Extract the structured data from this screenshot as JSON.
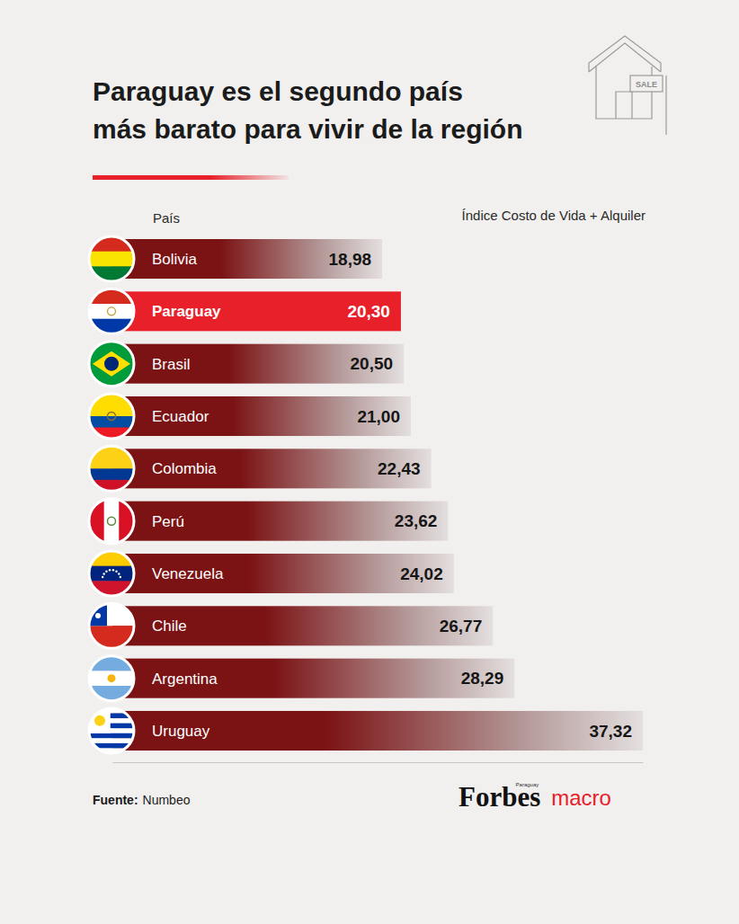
{
  "chart_data": {
    "type": "bar",
    "title": "Paraguay es el segundo país más barato para vivir de la región",
    "orientation": "horizontal",
    "category_header": "País",
    "value_header": "Índice Costo de Vida + Alquiler",
    "categories": [
      "Bolivia",
      "Paraguay",
      "Brasil",
      "Ecuador",
      "Colombia",
      "Perú",
      "Venezuela",
      "Chile",
      "Argentina",
      "Uruguay"
    ],
    "values": [
      18.98,
      20.3,
      20.5,
      21.0,
      22.43,
      23.62,
      24.02,
      26.77,
      28.29,
      37.32
    ],
    "value_labels": [
      "18,98",
      "20,30",
      "20,50",
      "21,00",
      "22,43",
      "23,62",
      "24,02",
      "26,77",
      "28,29",
      "37,32"
    ],
    "colors": [
      "#7b1214",
      "#e8202a",
      "#7b1214",
      "#7b1214",
      "#7b1214",
      "#7b1214",
      "#7b1214",
      "#7b1214",
      "#7b1214",
      "#7b1214"
    ],
    "xlim": [
      0,
      37.32
    ],
    "data_labels": true,
    "tick_labels": false,
    "source_label": "Fuente:",
    "source": "Numbeo",
    "logo": "Forbes",
    "logo_sub": "Paraguay",
    "logo_tag": "macro",
    "icon_sign": "SALE"
  }
}
